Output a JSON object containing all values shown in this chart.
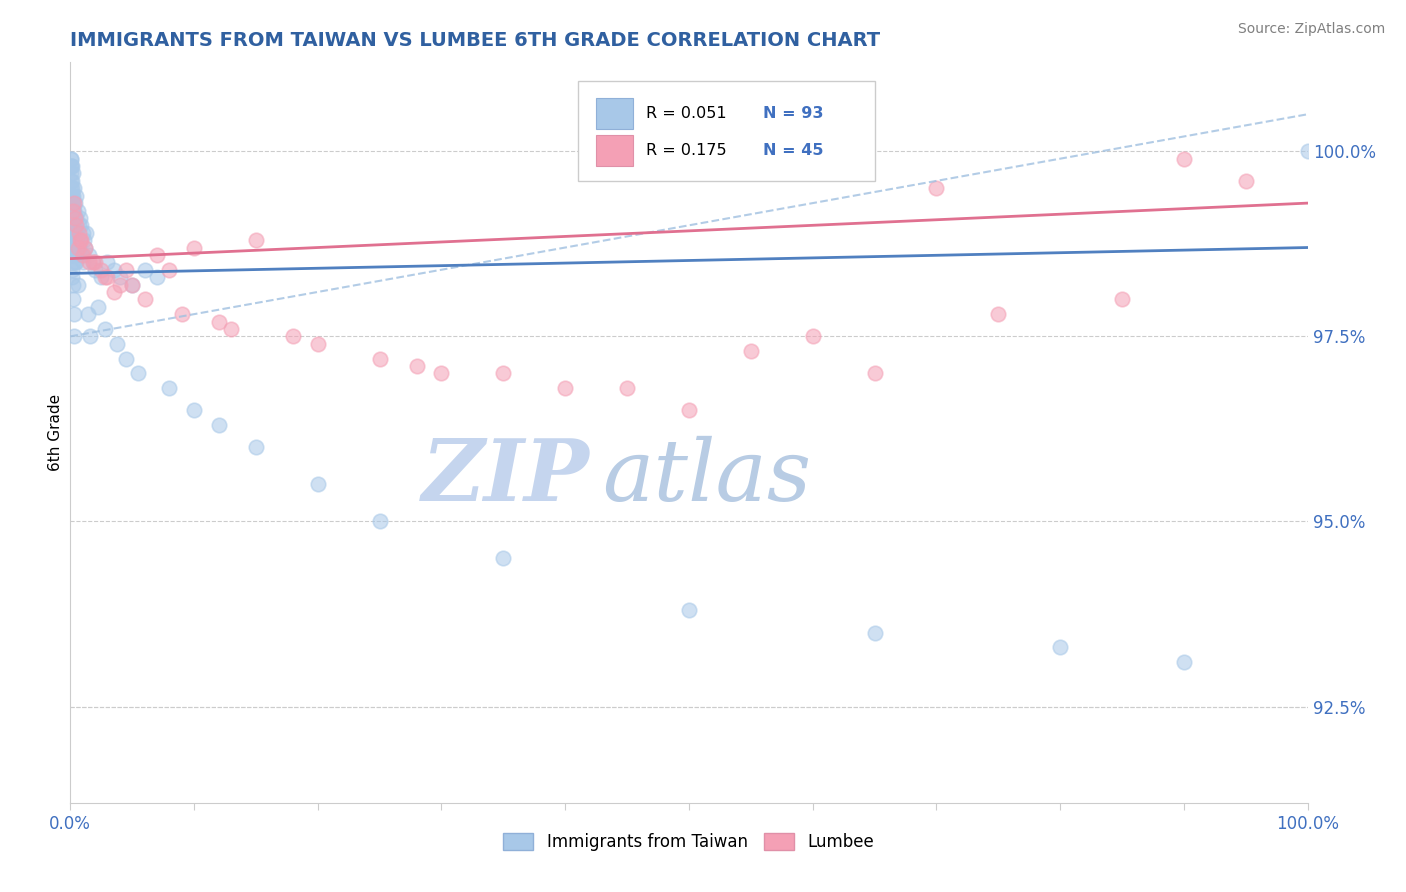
{
  "title": "IMMIGRANTS FROM TAIWAN VS LUMBEE 6TH GRADE CORRELATION CHART",
  "source": "Source: ZipAtlas.com",
  "ylabel": "6th Grade",
  "y_ticks": [
    92.5,
    95.0,
    97.5,
    100.0
  ],
  "xlim": [
    0.0,
    100.0
  ],
  "ylim": [
    91.2,
    101.2
  ],
  "color_blue": "#A8C8E8",
  "color_pink": "#F4A0B5",
  "color_blue_line": "#5080C0",
  "color_pink_line": "#E07090",
  "color_blue_dashed": "#A0C0E0",
  "watermark_zip_color": "#C8D8F0",
  "watermark_atlas_color": "#C8D8E8",
  "title_color": "#3060A0",
  "tick_label_color": "#4070C0",
  "source_color": "#808080",
  "taiwan_x": [
    0.1,
    0.1,
    0.1,
    0.1,
    0.1,
    0.2,
    0.2,
    0.2,
    0.2,
    0.3,
    0.3,
    0.3,
    0.4,
    0.4,
    0.5,
    0.5,
    0.5,
    0.6,
    0.6,
    0.7,
    0.7,
    0.8,
    0.8,
    0.9,
    0.9,
    1.0,
    1.0,
    1.1,
    1.2,
    1.3,
    0.15,
    0.15,
    0.15,
    0.25,
    0.25,
    0.35,
    0.35,
    0.45,
    0.45,
    0.55,
    0.05,
    0.05,
    0.05,
    0.08,
    0.08,
    0.12,
    0.12,
    0.18,
    0.18,
    0.22,
    1.5,
    1.8,
    2.0,
    2.5,
    3.0,
    3.5,
    4.0,
    5.0,
    6.0,
    7.0,
    1.4,
    1.6,
    2.2,
    2.8,
    3.8,
    4.5,
    5.5,
    8.0,
    10.0,
    12.0,
    0.06,
    0.07,
    0.09,
    0.11,
    0.13,
    0.16,
    0.19,
    0.23,
    0.28,
    0.32,
    15.0,
    20.0,
    25.0,
    35.0,
    50.0,
    65.0,
    80.0,
    90.0,
    100.0,
    0.04,
    0.04,
    0.14,
    0.38,
    0.62
  ],
  "taiwan_y": [
    99.8,
    99.6,
    99.3,
    98.8,
    98.3,
    99.7,
    99.4,
    99.0,
    98.5,
    99.5,
    99.2,
    98.7,
    99.3,
    98.9,
    99.4,
    99.1,
    98.6,
    99.2,
    98.8,
    99.0,
    98.7,
    99.1,
    98.8,
    99.0,
    98.6,
    98.9,
    98.5,
    98.8,
    98.7,
    98.9,
    99.5,
    99.1,
    98.6,
    99.3,
    98.9,
    99.1,
    98.7,
    98.9,
    98.5,
    98.8,
    99.9,
    99.7,
    99.4,
    99.6,
    99.2,
    99.4,
    99.0,
    99.2,
    98.8,
    99.0,
    98.6,
    98.5,
    98.4,
    98.3,
    98.5,
    98.4,
    98.3,
    98.2,
    98.4,
    98.3,
    97.8,
    97.5,
    97.9,
    97.6,
    97.4,
    97.2,
    97.0,
    96.8,
    96.5,
    96.3,
    99.8,
    99.5,
    99.2,
    98.9,
    98.7,
    98.4,
    98.2,
    98.0,
    97.8,
    97.5,
    96.0,
    95.5,
    95.0,
    94.5,
    93.8,
    93.5,
    93.3,
    93.1,
    100.0,
    99.9,
    99.8,
    98.8,
    98.5,
    98.2
  ],
  "lumbee_x": [
    0.3,
    0.5,
    0.8,
    1.2,
    2.0,
    3.0,
    4.5,
    7.0,
    10.0,
    15.0,
    0.4,
    0.7,
    1.0,
    1.8,
    2.8,
    4.0,
    6.0,
    9.0,
    13.0,
    20.0,
    25.0,
    30.0,
    40.0,
    50.0,
    60.0,
    75.0,
    85.0,
    95.0,
    0.6,
    1.5,
    5.0,
    35.0,
    55.0,
    8.0,
    45.0,
    0.2,
    2.5,
    18.0,
    70.0,
    0.9,
    3.5,
    12.0,
    28.0,
    65.0,
    90.0
  ],
  "lumbee_y": [
    99.3,
    99.0,
    98.8,
    98.7,
    98.5,
    98.3,
    98.4,
    98.6,
    98.7,
    98.8,
    99.1,
    98.9,
    98.6,
    98.5,
    98.3,
    98.2,
    98.0,
    97.8,
    97.6,
    97.4,
    97.2,
    97.0,
    96.8,
    96.5,
    97.5,
    97.8,
    98.0,
    99.6,
    98.7,
    98.5,
    98.2,
    97.0,
    97.3,
    98.4,
    96.8,
    99.2,
    98.4,
    97.5,
    99.5,
    98.8,
    98.1,
    97.7,
    97.1,
    97.0,
    99.9
  ],
  "tw_trend_x0": 0.0,
  "tw_trend_y0": 98.35,
  "tw_trend_x1": 100.0,
  "tw_trend_y1": 98.7,
  "lu_trend_x0": 0.0,
  "lu_trend_y0": 98.55,
  "lu_trend_x1": 100.0,
  "lu_trend_y1": 99.3,
  "dash_x0": 0.0,
  "dash_y0": 97.5,
  "dash_x1": 100.0,
  "dash_y1": 100.5
}
